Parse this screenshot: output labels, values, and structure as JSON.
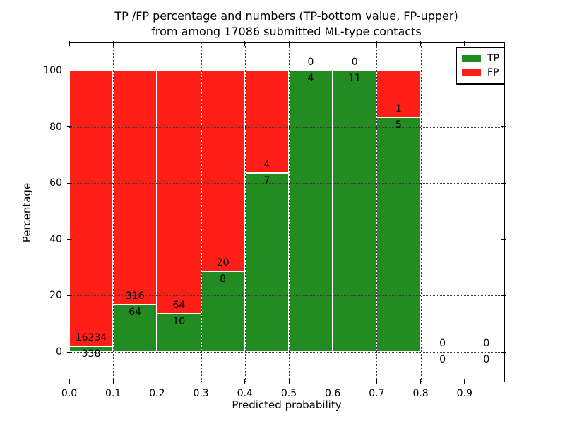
{
  "title": {
    "line1": "TP /FP percentage and numbers (TP-bottom value, FP-upper)",
    "line2": "from among 17086 submitted ML-type contacts"
  },
  "chart_data": {
    "type": "bar",
    "stacked": true,
    "orientation": "vertical",
    "title": "TP /FP percentage and numbers (TP-bottom value, FP-upper) from among 17086 submitted ML-type contacts",
    "total_contacts": 17086,
    "xlabel": "Predicted probability",
    "ylabel": "Percentage",
    "bin_width": 0.1,
    "categories": [
      "0.0-0.1",
      "0.1-0.2",
      "0.2-0.3",
      "0.3-0.4",
      "0.4-0.5",
      "0.5-0.6",
      "0.6-0.7",
      "0.7-0.8",
      "0.8-0.9",
      "0.9-1.0"
    ],
    "xticks": [
      "0.0",
      "0.1",
      "0.2",
      "0.3",
      "0.4",
      "0.5",
      "0.6",
      "0.7",
      "0.8",
      "0.9"
    ],
    "yticks": [
      0,
      20,
      40,
      60,
      80,
      100
    ],
    "xlim": [
      0.0,
      0.99
    ],
    "ylim": [
      -11,
      110
    ],
    "grid": true,
    "grid_style": "dotted",
    "legend_position": "upper right",
    "bar_label_note": "FP count printed above TP/FP boundary, TP count printed below it",
    "series": [
      {
        "name": "TP",
        "color": "#228b22",
        "counts": [
          338,
          64,
          10,
          8,
          7,
          4,
          11,
          5,
          0,
          0
        ],
        "percent": [
          2.0,
          16.8,
          13.5,
          28.6,
          63.6,
          100.0,
          100.0,
          83.3,
          0.0,
          0.0
        ]
      },
      {
        "name": "FP",
        "color": "#ff1f17",
        "counts": [
          16234,
          316,
          64,
          20,
          4,
          0,
          0,
          1,
          0,
          0
        ],
        "percent": [
          98.0,
          83.2,
          86.5,
          71.4,
          36.4,
          0.0,
          0.0,
          16.7,
          0.0,
          0.0
        ]
      }
    ]
  },
  "colors": {
    "background": "#ffffff",
    "frame": "#000000",
    "grid": "#3a3a3a",
    "bar_edge": "#ffffff",
    "text": "#000000",
    "tp": "#228b22",
    "fp": "#ff1f17"
  }
}
